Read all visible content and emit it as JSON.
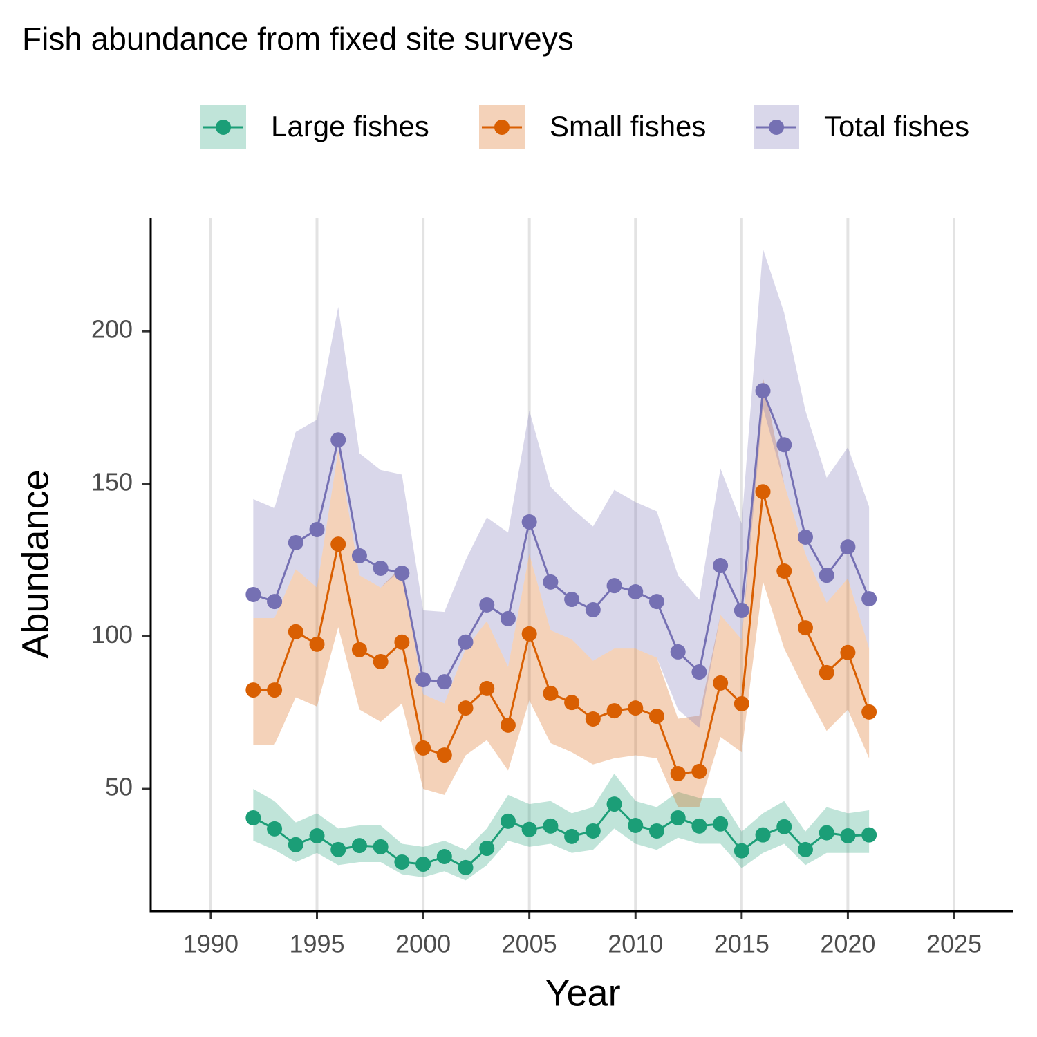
{
  "chart_data": {
    "type": "line",
    "title": "Fish abundance from fixed site surveys",
    "xlabel": "Year",
    "ylabel": "Abundance",
    "x": [
      1992,
      1993,
      1994,
      1995,
      1996,
      1997,
      1998,
      1999,
      2000,
      2001,
      2002,
      2003,
      2004,
      2005,
      2006,
      2007,
      2008,
      2009,
      2010,
      2011,
      2012,
      2013,
      2014,
      2015,
      2016,
      2017,
      2018,
      2019,
      2020,
      2021
    ],
    "series": [
      {
        "name": "Large fishes",
        "color": "#1b9e77",
        "values": [
          40.5,
          36.9,
          31.7,
          34.6,
          30.1,
          31.4,
          31.0,
          26.0,
          25.3,
          27.8,
          24.2,
          30.5,
          39.4,
          36.7,
          37.8,
          34.4,
          36.2,
          45.0,
          38.0,
          36.2,
          40.5,
          37.8,
          38.5,
          29.7,
          34.9,
          37.6,
          30.1,
          35.6,
          34.6,
          34.9
        ],
        "lower": [
          33,
          30,
          26,
          29,
          25,
          26,
          26,
          22,
          21,
          23,
          20,
          25,
          33,
          31,
          32,
          29,
          30,
          37,
          32,
          30,
          34,
          32,
          32,
          24,
          29,
          32,
          25,
          29,
          29,
          29
        ],
        "upper": [
          50,
          46,
          39,
          42,
          37,
          38,
          38,
          32,
          31,
          33,
          30,
          37,
          48,
          45,
          46,
          42,
          44,
          55,
          46,
          44,
          49,
          47,
          47,
          36,
          42,
          46,
          36,
          44,
          42,
          43
        ]
      },
      {
        "name": "Small fishes",
        "color": "#d95f02",
        "values": [
          82.4,
          82.4,
          101.5,
          97.4,
          130.2,
          95.6,
          91.7,
          98.1,
          63.4,
          61.1,
          76.5,
          82.9,
          70.9,
          100.8,
          81.3,
          78.3,
          72.9,
          75.6,
          76.5,
          73.8,
          55.0,
          55.7,
          84.7,
          77.9,
          147.4,
          121.4,
          102.8,
          88.1,
          94.7,
          75.2
        ],
        "lower": [
          64.5,
          64.5,
          80,
          77,
          103,
          76,
          72,
          78,
          50,
          48,
          61,
          66,
          56,
          79,
          65,
          62,
          58,
          60,
          61,
          60,
          44,
          44,
          67,
          62,
          118,
          96,
          82,
          69,
          76,
          60
        ],
        "upper": [
          106,
          106,
          122,
          116,
          161,
          120,
          116,
          123,
          81,
          78,
          96,
          105,
          90,
          127,
          102,
          99,
          92,
          96,
          96,
          93,
          73,
          74,
          107,
          99,
          185,
          150,
          127,
          111,
          119,
          96
        ]
      },
      {
        "name": "Total fishes",
        "color": "#7570b3",
        "values": [
          113.7,
          111.4,
          130.7,
          135.0,
          164.4,
          126.4,
          122.3,
          120.7,
          85.8,
          85.1,
          98.1,
          110.3,
          105.8,
          137.5,
          117.8,
          112.1,
          108.7,
          116.6,
          114.6,
          111.4,
          94.9,
          88.3,
          123.2,
          108.5,
          180.5,
          162.8,
          132.5,
          120.0,
          129.3,
          112.3
        ],
        "lower": [
          106,
          106,
          122,
          116,
          161,
          120,
          116,
          122,
          81,
          78,
          96,
          105,
          90,
          127,
          102,
          99,
          92,
          96,
          96,
          93,
          76,
          70,
          107,
          99,
          175,
          150,
          127,
          111,
          119,
          96
        ],
        "upper": [
          145,
          142,
          167,
          171,
          208,
          160,
          154.5,
          153,
          108.5,
          108,
          125,
          139,
          134,
          174,
          149,
          142,
          136,
          148,
          144,
          141,
          120,
          112,
          155,
          137,
          227,
          206,
          174,
          152,
          162,
          142.5
        ]
      }
    ],
    "xlim": [
      1987.17,
      2027.8
    ],
    "xticks": [
      1990,
      1995,
      2000,
      2005,
      2010,
      2015,
      2020,
      2025
    ],
    "ylim": [
      9.9,
      237.2
    ],
    "yticks": [
      50,
      100,
      150,
      200
    ],
    "grid": "x",
    "legend": "top"
  }
}
